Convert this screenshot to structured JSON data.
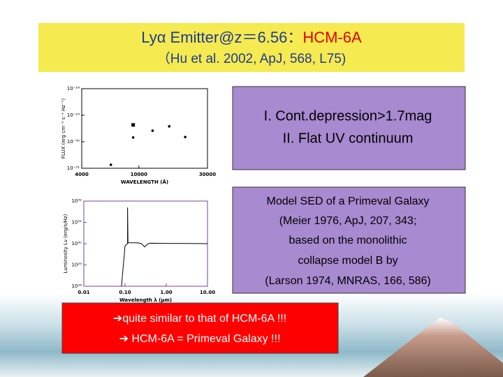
{
  "title": {
    "prefix": "Lyα Emitter@z＝6.56：",
    "highlight": "HCM-6A",
    "citation": "（Hu et al. 2002, ApJ, 568, L75)"
  },
  "box1": {
    "lines": [
      "I. Cont.depression>1.7mag",
      "II. Flat UV continuum"
    ]
  },
  "box2": {
    "lines": [
      "Model SED of a Primeval Galaxy",
      "(Meier 1976, ApJ, 207, 343;",
      "based on the monolithic",
      "collapse model B by",
      "(Larson 1974, MNRAS, 166, 586)"
    ]
  },
  "conclusion": {
    "lines": [
      "➔quite similar to that of HCM-6A !!!",
      "➔ HCM-6A = Primeval Galaxy !!!"
    ]
  },
  "plots": [
    {
      "type": "scatter",
      "xlabel": "WAVELENGTH (Å)",
      "ylabel": "FLUX (erg cm⁻² s⁻¹ Hz⁻¹)",
      "log_x": true,
      "log_y": true,
      "xlim": [
        4000,
        30000
      ],
      "ylim": [
        1e-31,
        1e-28
      ],
      "xticks": [
        4000,
        10000,
        30000
      ],
      "yticks": [
        {
          "value": 1e-31,
          "label": "10⁻³¹"
        },
        {
          "value": 1e-30,
          "label": "10⁻³⁰"
        },
        {
          "value": 1e-29,
          "label": "10⁻²⁹"
        },
        {
          "value": 1e-28,
          "label": "10⁻²⁸"
        }
      ],
      "series": [
        {
          "marker": "circle",
          "color": "#000000",
          "x": [
            6380,
            9120,
            12450,
            16250,
            21000
          ],
          "values": [
            1.35e-31,
            1.45e-30,
            2.6e-30,
            3.8e-30,
            1.5e-30
          ]
        },
        {
          "marker": "square",
          "color": "#000000",
          "x": [
            9120
          ],
          "values": [
            4.3e-30
          ]
        }
      ]
    },
    {
      "type": "line",
      "xlabel": "Wavelength λ (μm)",
      "ylabel": "Luminosity Lν (erg/s/Hz)",
      "log_x": true,
      "log_y": true,
      "xlim": [
        0.01,
        10
      ],
      "ylim": [
        1e+28,
        1e+32
      ],
      "xticks": [
        {
          "value": 0.01,
          "label": "0.01"
        },
        {
          "value": 0.1,
          "label": "0.10"
        },
        {
          "value": 1,
          "label": "1.00"
        },
        {
          "value": 10,
          "label": "10.00"
        }
      ],
      "yticks": [
        {
          "value": 1e+28,
          "label": "10²⁸"
        },
        {
          "value": 1e+29,
          "label": "10²⁹"
        },
        {
          "value": 1e+30,
          "label": "10³⁰"
        },
        {
          "value": 1e+31,
          "label": "10³¹"
        },
        {
          "value": 1e+32,
          "label": "10³²"
        }
      ],
      "series": [
        {
          "color": "#000000",
          "x": [
            0.082,
            0.1,
            0.115,
            0.115,
            0.118,
            0.2,
            0.25,
            0.3,
            0.36,
            0.42,
            10
          ],
          "values": [
            1e+28,
            8e+29,
            1e+30,
            5e+31,
            1.1e+30,
            1.1e+30,
            1e+30,
            7e+29,
            1e+30,
            1.05e+30,
            1e+30
          ]
        }
      ]
    }
  ]
}
